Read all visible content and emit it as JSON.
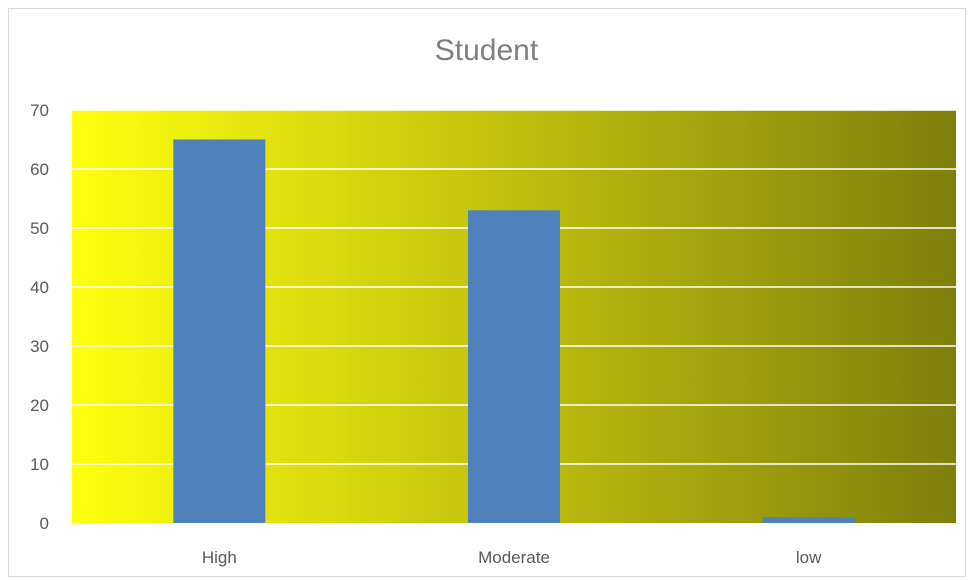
{
  "chart_data": {
    "type": "bar",
    "title": "Student",
    "categories": [
      "High",
      "Moderate",
      "low"
    ],
    "values": [
      65,
      53,
      1
    ],
    "ylim": [
      0,
      70
    ],
    "yticks": [
      0,
      10,
      20,
      30,
      40,
      50,
      60,
      70
    ],
    "grid": true,
    "legend": "none",
    "colors": {
      "bar": "#4f81bd",
      "plot_bg_start": "#ffff0f",
      "plot_bg_end": "#7f7f0d",
      "gridline": "#ffffff",
      "tick_text": "#595959",
      "title_text": "#7f7f7f"
    }
  }
}
